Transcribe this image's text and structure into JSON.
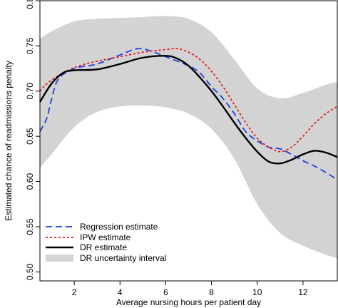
{
  "chart_data": {
    "type": "line",
    "xlabel": "Average nursing hours per patient day",
    "ylabel": "Estimated chance of readmissions penalty",
    "xlim": [
      0.5,
      13.5
    ],
    "ylim": [
      0.49,
      0.8
    ],
    "xticks": [
      2,
      4,
      6,
      8,
      10,
      12
    ],
    "yticks": [
      0.5,
      0.55,
      0.6,
      0.65,
      0.7,
      0.75,
      0.8
    ],
    "grid": false,
    "legend_position": "bottom-left",
    "band": {
      "name": "DR uncertainty interval",
      "color": "#d3d3d3",
      "x": [
        0.5,
        1,
        2,
        3,
        4,
        5,
        6,
        7,
        8,
        9,
        10,
        11,
        12,
        13,
        13.5
      ],
      "upper": [
        0.758,
        0.766,
        0.777,
        0.78,
        0.781,
        0.782,
        0.783,
        0.78,
        0.765,
        0.735,
        0.703,
        0.692,
        0.698,
        0.707,
        0.71
      ],
      "lower": [
        0.615,
        0.63,
        0.66,
        0.677,
        0.683,
        0.684,
        0.682,
        0.675,
        0.658,
        0.625,
        0.575,
        0.543,
        0.529,
        0.519,
        0.515
      ]
    },
    "series": [
      {
        "name": "Regression estimate",
        "color": "#1f3fd9",
        "style": "dashed",
        "x": [
          0.5,
          0.8,
          1.0,
          1.3,
          2,
          3,
          4,
          4.8,
          5.5,
          6,
          7,
          7.5,
          8,
          8.5,
          9,
          9.5,
          10,
          10.5,
          11,
          11.5,
          12,
          12.5,
          13,
          13.5
        ],
        "y": [
          0.655,
          0.67,
          0.69,
          0.713,
          0.725,
          0.73,
          0.74,
          0.747,
          0.743,
          0.738,
          0.728,
          0.72,
          0.705,
          0.692,
          0.675,
          0.655,
          0.645,
          0.638,
          0.636,
          0.63,
          0.623,
          0.617,
          0.61,
          0.602
        ]
      },
      {
        "name": "IPW estimate",
        "color": "#e41a1c",
        "style": "dotted",
        "x": [
          0.5,
          1,
          2,
          3,
          4,
          5,
          6,
          6.5,
          7,
          7.5,
          8,
          8.5,
          9,
          9.5,
          10,
          10.5,
          11,
          11.5,
          12,
          12.5,
          13,
          13.5
        ],
        "y": [
          0.7,
          0.712,
          0.726,
          0.733,
          0.738,
          0.743,
          0.746,
          0.747,
          0.743,
          0.735,
          0.722,
          0.705,
          0.685,
          0.665,
          0.648,
          0.638,
          0.633,
          0.638,
          0.65,
          0.664,
          0.675,
          0.683
        ]
      },
      {
        "name": "DR estimate",
        "color": "#000000",
        "style": "solid",
        "x": [
          0.5,
          1,
          1.5,
          2,
          3,
          4,
          5,
          6,
          6.5,
          7,
          7.5,
          8,
          8.5,
          9,
          9.5,
          10,
          10.5,
          11,
          11.5,
          12,
          12.5,
          13,
          13.5
        ],
        "y": [
          0.688,
          0.708,
          0.72,
          0.723,
          0.724,
          0.73,
          0.737,
          0.739,
          0.736,
          0.728,
          0.715,
          0.7,
          0.683,
          0.665,
          0.648,
          0.633,
          0.622,
          0.62,
          0.624,
          0.63,
          0.634,
          0.632,
          0.627
        ]
      }
    ],
    "legend": [
      {
        "label": "Regression estimate",
        "kind": "dashed",
        "color": "#1f3fd9"
      },
      {
        "label": "IPW estimate",
        "kind": "dotted",
        "color": "#e41a1c"
      },
      {
        "label": "DR estimate",
        "kind": "solid",
        "color": "#000000"
      },
      {
        "label": "DR uncertainty interval",
        "kind": "band",
        "color": "#d3d3d3"
      }
    ]
  }
}
